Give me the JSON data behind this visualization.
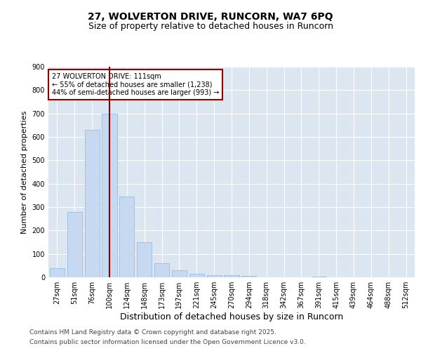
{
  "title1": "27, WOLVERTON DRIVE, RUNCORN, WA7 6PQ",
  "title2": "Size of property relative to detached houses in Runcorn",
  "xlabel": "Distribution of detached houses by size in Runcorn",
  "ylabel": "Number of detached properties",
  "categories": [
    "27sqm",
    "51sqm",
    "76sqm",
    "100sqm",
    "124sqm",
    "148sqm",
    "173sqm",
    "197sqm",
    "221sqm",
    "245sqm",
    "270sqm",
    "294sqm",
    "318sqm",
    "342sqm",
    "367sqm",
    "391sqm",
    "415sqm",
    "439sqm",
    "464sqm",
    "488sqm",
    "512sqm"
  ],
  "values": [
    40,
    280,
    630,
    700,
    345,
    150,
    60,
    30,
    15,
    10,
    8,
    5,
    0,
    0,
    0,
    3,
    0,
    0,
    0,
    0,
    0
  ],
  "bar_color": "#c6d9f0",
  "bar_edge_color": "#8db4e2",
  "vline_x": 3,
  "vline_color": "#8b0000",
  "annotation_line1": "27 WOLVERTON DRIVE: 111sqm",
  "annotation_line2": "← 55% of detached houses are smaller (1,238)",
  "annotation_line3": "44% of semi-detached houses are larger (993) →",
  "annotation_box_color": "#ffffff",
  "annotation_box_edge": "#8b0000",
  "ylim": [
    0,
    900
  ],
  "yticks": [
    0,
    100,
    200,
    300,
    400,
    500,
    600,
    700,
    800,
    900
  ],
  "background_color": "#dce6f1",
  "footer1": "Contains HM Land Registry data © Crown copyright and database right 2025.",
  "footer2": "Contains public sector information licensed under the Open Government Licence v3.0.",
  "title_fontsize": 10,
  "subtitle_fontsize": 9,
  "axis_label_fontsize": 8,
  "tick_fontsize": 7,
  "annotation_fontsize": 7,
  "footer_fontsize": 6.5
}
